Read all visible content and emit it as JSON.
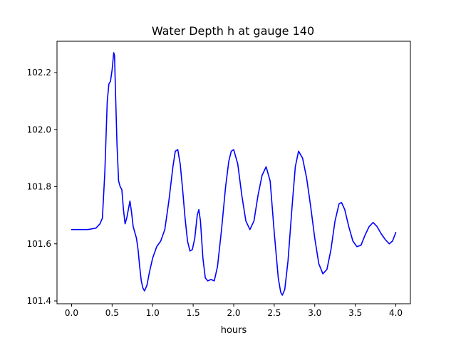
{
  "chart_data": {
    "type": "line",
    "title": "Water Depth h at gauge 140",
    "xlabel": "hours",
    "ylabel": "",
    "xlim": [
      -0.18,
      4.18
    ],
    "ylim": [
      101.39,
      102.31
    ],
    "x_ticks": [
      0.0,
      0.5,
      1.0,
      1.5,
      2.0,
      2.5,
      3.0,
      3.5,
      4.0
    ],
    "x_tick_labels": [
      "0.0",
      "0.5",
      "1.0",
      "1.5",
      "2.0",
      "2.5",
      "3.0",
      "3.5",
      "4.0"
    ],
    "y_ticks": [
      101.4,
      101.6,
      101.8,
      102.0,
      102.2
    ],
    "y_tick_labels": [
      "101.4",
      "101.6",
      "101.8",
      "102.0",
      "102.2"
    ],
    "grid": false,
    "legend": "none",
    "series": [
      {
        "color": "#0000ff",
        "x": [
          0.0,
          0.1,
          0.2,
          0.3,
          0.35,
          0.38,
          0.41,
          0.44,
          0.46,
          0.48,
          0.5,
          0.52,
          0.53,
          0.54,
          0.56,
          0.58,
          0.6,
          0.62,
          0.64,
          0.66,
          0.68,
          0.7,
          0.72,
          0.74,
          0.76,
          0.78,
          0.8,
          0.82,
          0.84,
          0.86,
          0.88,
          0.9,
          0.93,
          0.96,
          1.0,
          1.05,
          1.1,
          1.15,
          1.2,
          1.25,
          1.28,
          1.31,
          1.34,
          1.37,
          1.4,
          1.43,
          1.46,
          1.49,
          1.52,
          1.55,
          1.57,
          1.59,
          1.62,
          1.65,
          1.68,
          1.72,
          1.76,
          1.8,
          1.85,
          1.9,
          1.94,
          1.97,
          2.0,
          2.05,
          2.1,
          2.15,
          2.2,
          2.25,
          2.3,
          2.35,
          2.4,
          2.45,
          2.5,
          2.55,
          2.58,
          2.6,
          2.63,
          2.67,
          2.72,
          2.76,
          2.8,
          2.85,
          2.9,
          2.95,
          3.0,
          3.05,
          3.1,
          3.15,
          3.2,
          3.25,
          3.3,
          3.33,
          3.37,
          3.42,
          3.47,
          3.52,
          3.57,
          3.62,
          3.67,
          3.72,
          3.77,
          3.82,
          3.87,
          3.92,
          3.96,
          4.0
        ],
        "y": [
          101.65,
          101.65,
          101.65,
          101.655,
          101.67,
          101.69,
          101.85,
          102.1,
          102.16,
          102.17,
          102.21,
          102.27,
          102.26,
          102.15,
          101.95,
          101.82,
          101.8,
          101.79,
          101.72,
          101.67,
          101.69,
          101.72,
          101.75,
          101.71,
          101.66,
          101.64,
          101.62,
          101.58,
          101.52,
          101.47,
          101.445,
          101.435,
          101.455,
          101.5,
          101.55,
          101.59,
          101.61,
          101.65,
          101.75,
          101.87,
          101.925,
          101.93,
          101.88,
          101.79,
          101.69,
          101.61,
          101.575,
          101.58,
          101.62,
          101.7,
          101.72,
          101.68,
          101.55,
          101.48,
          101.47,
          101.475,
          101.47,
          101.52,
          101.65,
          101.8,
          101.89,
          101.925,
          101.93,
          101.88,
          101.77,
          101.68,
          101.65,
          101.68,
          101.77,
          101.84,
          101.87,
          101.82,
          101.64,
          101.48,
          101.43,
          101.42,
          101.44,
          101.54,
          101.73,
          101.87,
          101.925,
          101.9,
          101.83,
          101.73,
          101.62,
          101.53,
          101.495,
          101.51,
          101.58,
          101.68,
          101.74,
          101.745,
          101.72,
          101.66,
          101.61,
          101.59,
          101.595,
          101.63,
          101.66,
          101.675,
          101.66,
          101.635,
          101.615,
          101.6,
          101.61,
          101.64
        ]
      }
    ]
  }
}
